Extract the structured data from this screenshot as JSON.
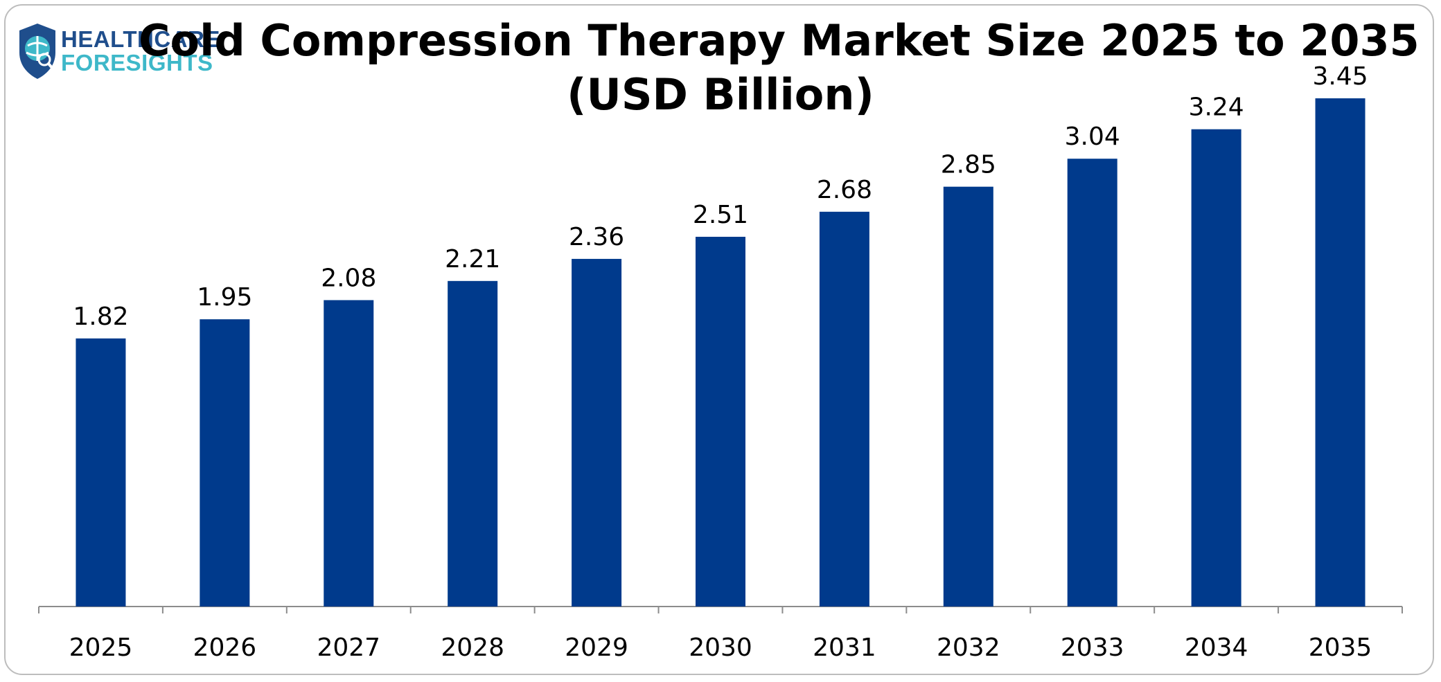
{
  "logo": {
    "line1": "HEALTHCARE",
    "line2": "FORESIGHTS",
    "icon": "shield-globe-icon"
  },
  "chart_data": {
    "type": "bar",
    "title": "Cold Compression Therapy Market Size 2025 to 2035",
    "subtitle": "(USD Billion)",
    "categories": [
      "2025",
      "2026",
      "2027",
      "2028",
      "2029",
      "2030",
      "2031",
      "2032",
      "2033",
      "2034",
      "2035"
    ],
    "values": [
      1.82,
      1.95,
      2.08,
      2.21,
      2.36,
      2.51,
      2.68,
      2.85,
      3.04,
      3.24,
      3.45
    ],
    "xlabel": "",
    "ylabel": "",
    "ylim": [
      0,
      3.6
    ],
    "grid": false,
    "legend": "none",
    "bar_color": "#003A8C",
    "axis_color": "#8c8c8c"
  }
}
